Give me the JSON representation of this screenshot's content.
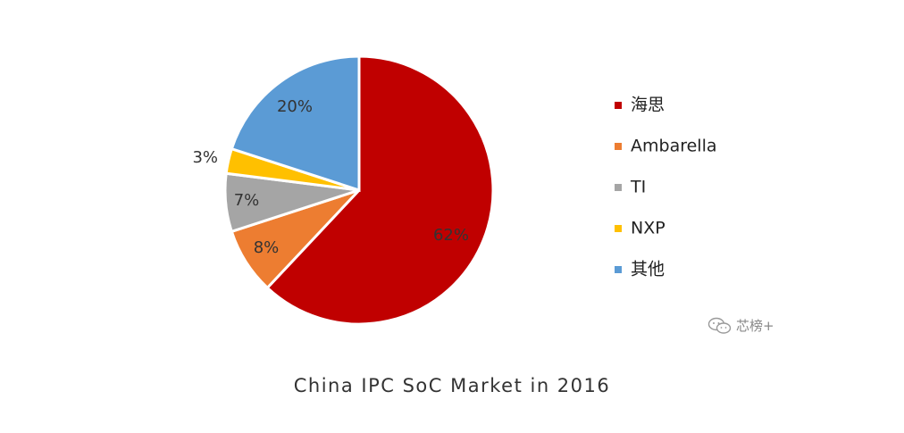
{
  "chart_data": {
    "type": "pie",
    "categories": [
      "海思",
      "Ambarella",
      "TI",
      "NXP",
      "其他"
    ],
    "values": [
      62,
      8,
      7,
      3,
      20
    ],
    "data_labels": [
      "62%",
      "8%",
      "7%",
      "3%",
      "20%"
    ],
    "colors": [
      "#C00000",
      "#ED7D31",
      "#A5A5A5",
      "#FFC000",
      "#5B9BD5"
    ],
    "legend_position": "right",
    "start": "12 o'clock",
    "direction": "clockwise"
  },
  "caption": "China IPC SoC Market in 2016",
  "watermark": {
    "icon": "wechat-icon",
    "text": "芯榜+"
  }
}
